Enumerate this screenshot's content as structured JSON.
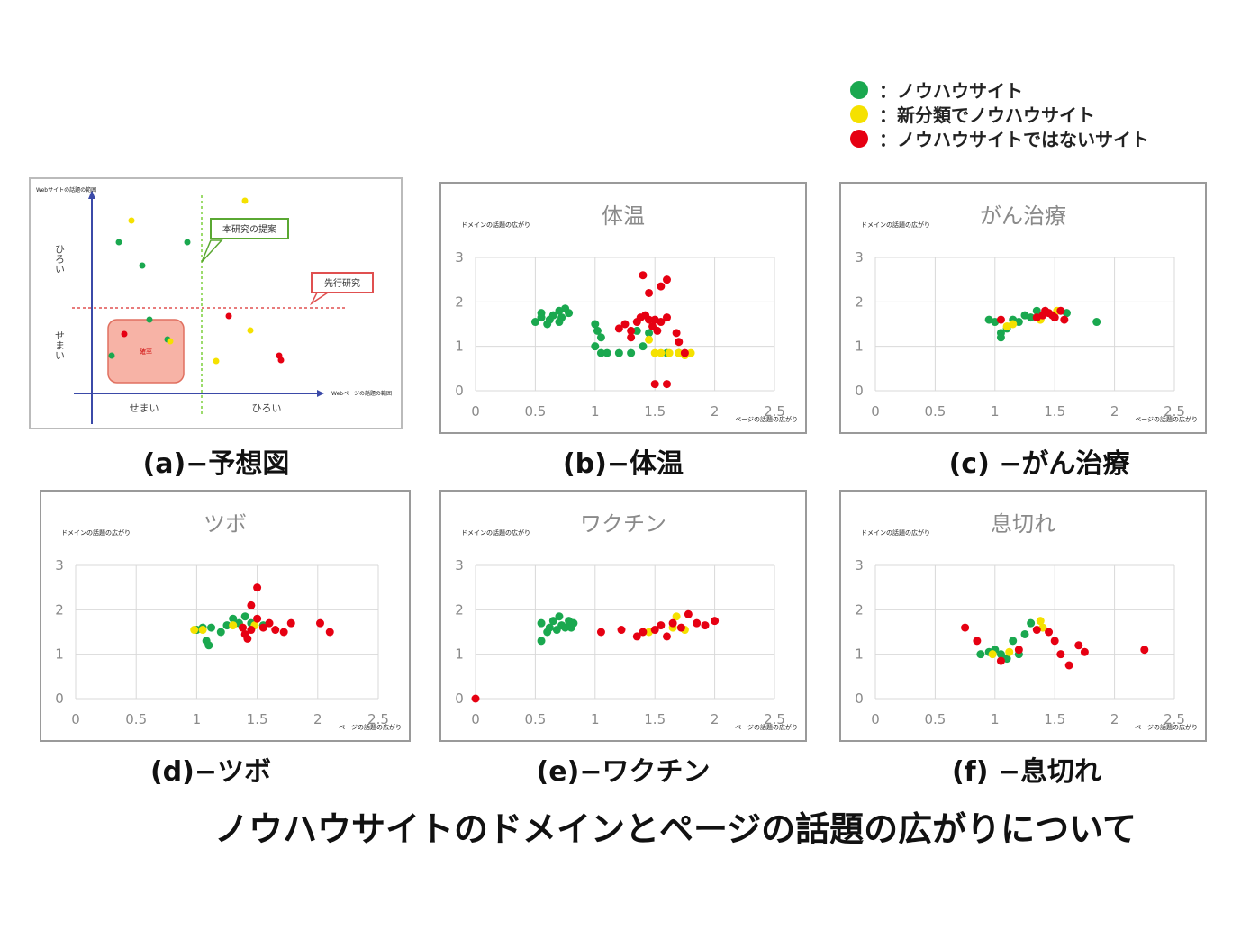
{
  "colors": {
    "green": "#1aa84f",
    "yellow": "#f5e100",
    "red": "#e60012"
  },
  "legend": [
    {
      "color": "#1aa84f",
      "label": "：ノウハウサイト"
    },
    {
      "color": "#f5e100",
      "label": "：新分類でノウハウサイト"
    },
    {
      "color": "#e60012",
      "label": "：ノウハウサイトではないサイト"
    }
  ],
  "main_title": "ノウハウサイトのドメインとページの話題の広がりについて",
  "diagram": {
    "caption": "(a)−予想図",
    "y_axis_label": "Webサイトの話題の範囲",
    "x_axis_label": "Webページの話題の範囲",
    "y_top_label": "ひろい",
    "y_bottom_label": "せまい",
    "x_left_label": "せまい",
    "x_right_label": "ひろい",
    "callout_green": "本研究の提案",
    "callout_red": "先行研究",
    "box_label": "確率"
  },
  "chart_data": [
    {
      "type": "scatter",
      "title": "体温",
      "caption": "(b)−体温",
      "xlabel": "ページの話題の広がり",
      "ylabel": "ドメインの話題の広がり",
      "xlim": [
        0,
        2.5
      ],
      "ylim": [
        0,
        3
      ],
      "xticks": [
        "0",
        "0.5",
        "1",
        "1.5",
        "2",
        "2.5"
      ],
      "yticks": [
        "0",
        "1",
        "2",
        "3"
      ],
      "grid": true,
      "series": [
        {
          "color": "green",
          "points": [
            [
              0.5,
              1.55
            ],
            [
              0.55,
              1.65
            ],
            [
              0.55,
              1.75
            ],
            [
              0.6,
              1.5
            ],
            [
              0.62,
              1.6
            ],
            [
              0.65,
              1.7
            ],
            [
              0.7,
              1.8
            ],
            [
              0.72,
              1.65
            ],
            [
              0.75,
              1.85
            ],
            [
              0.78,
              1.75
            ],
            [
              0.7,
              1.55
            ],
            [
              1.0,
              1.5
            ],
            [
              1.02,
              1.35
            ],
            [
              1.05,
              1.2
            ],
            [
              1.0,
              1.0
            ],
            [
              1.05,
              0.85
            ],
            [
              1.1,
              0.85
            ],
            [
              1.2,
              0.85
            ],
            [
              1.3,
              0.85
            ],
            [
              1.35,
              1.35
            ],
            [
              1.4,
              1.0
            ],
            [
              1.45,
              1.3
            ],
            [
              1.6,
              0.85
            ],
            [
              1.7,
              0.85
            ]
          ]
        },
        {
          "color": "yellow",
          "points": [
            [
              1.45,
              1.15
            ],
            [
              1.5,
              0.85
            ],
            [
              1.55,
              0.85
            ],
            [
              1.62,
              0.85
            ],
            [
              1.7,
              0.85
            ],
            [
              1.75,
              0.8
            ],
            [
              1.8,
              0.85
            ]
          ]
        },
        {
          "color": "red",
          "points": [
            [
              1.4,
              2.6
            ],
            [
              1.55,
              2.35
            ],
            [
              1.6,
              2.5
            ],
            [
              1.45,
              2.2
            ],
            [
              1.2,
              1.4
            ],
            [
              1.25,
              1.5
            ],
            [
              1.3,
              1.35
            ],
            [
              1.3,
              1.2
            ],
            [
              1.35,
              1.55
            ],
            [
              1.38,
              1.65
            ],
            [
              1.42,
              1.7
            ],
            [
              1.45,
              1.6
            ],
            [
              1.5,
              1.6
            ],
            [
              1.55,
              1.55
            ],
            [
              1.6,
              1.65
            ],
            [
              1.48,
              1.45
            ],
            [
              1.52,
              1.35
            ],
            [
              1.68,
              1.3
            ],
            [
              1.7,
              1.1
            ],
            [
              1.75,
              0.85
            ],
            [
              1.5,
              0.15
            ],
            [
              1.6,
              0.15
            ]
          ]
        }
      ]
    },
    {
      "type": "scatter",
      "title": "がん治療",
      "caption": "(c) −がん治療",
      "xlabel": "ページの話題の広がり",
      "ylabel": "ドメインの話題の広がり",
      "xlim": [
        0,
        2.5
      ],
      "ylim": [
        0,
        3
      ],
      "xticks": [
        "0",
        "0.5",
        "1",
        "1.5",
        "2",
        "2.5"
      ],
      "yticks": [
        "0",
        "1",
        "2",
        "3"
      ],
      "grid": true,
      "series": [
        {
          "color": "green",
          "points": [
            [
              0.95,
              1.6
            ],
            [
              1.0,
              1.55
            ],
            [
              1.05,
              1.3
            ],
            [
              1.05,
              1.2
            ],
            [
              1.1,
              1.4
            ],
            [
              1.15,
              1.6
            ],
            [
              1.2,
              1.55
            ],
            [
              1.25,
              1.7
            ],
            [
              1.3,
              1.65
            ],
            [
              1.35,
              1.8
            ],
            [
              1.6,
              1.75
            ],
            [
              1.85,
              1.55
            ]
          ]
        },
        {
          "color": "yellow",
          "points": [
            [
              1.1,
              1.45
            ],
            [
              1.15,
              1.5
            ],
            [
              1.38,
              1.6
            ],
            [
              1.52,
              1.8
            ]
          ]
        },
        {
          "color": "red",
          "points": [
            [
              1.05,
              1.6
            ],
            [
              1.35,
              1.65
            ],
            [
              1.4,
              1.7
            ],
            [
              1.42,
              1.8
            ],
            [
              1.45,
              1.75
            ],
            [
              1.5,
              1.65
            ],
            [
              1.55,
              1.8
            ],
            [
              1.58,
              1.6
            ],
            [
              1.48,
              1.7
            ]
          ]
        }
      ]
    },
    {
      "type": "scatter",
      "title": "ツボ",
      "caption": "(d)−ツボ",
      "xlabel": "ページの話題の広がり",
      "ylabel": "ドメインの話題の広がり",
      "xlim": [
        0,
        2.5
      ],
      "ylim": [
        0,
        3
      ],
      "xticks": [
        "0",
        "0.5",
        "1",
        "1.5",
        "2",
        "2.5"
      ],
      "yticks": [
        "0",
        "1",
        "2",
        "3"
      ],
      "grid": true,
      "series": [
        {
          "color": "green",
          "points": [
            [
              1.0,
              1.55
            ],
            [
              1.05,
              1.6
            ],
            [
              1.08,
              1.3
            ],
            [
              1.1,
              1.2
            ],
            [
              1.12,
              1.6
            ],
            [
              1.2,
              1.5
            ],
            [
              1.25,
              1.65
            ],
            [
              1.3,
              1.8
            ],
            [
              1.35,
              1.7
            ],
            [
              1.4,
              1.85
            ],
            [
              1.45,
              1.7
            ],
            [
              1.55,
              1.65
            ]
          ]
        },
        {
          "color": "yellow",
          "points": [
            [
              0.98,
              1.55
            ],
            [
              1.05,
              1.55
            ],
            [
              1.3,
              1.65
            ],
            [
              1.38,
              1.6
            ],
            [
              1.48,
              1.65
            ]
          ]
        },
        {
          "color": "red",
          "points": [
            [
              1.5,
              2.5
            ],
            [
              1.45,
              2.1
            ],
            [
              1.38,
              1.6
            ],
            [
              1.4,
              1.45
            ],
            [
              1.42,
              1.35
            ],
            [
              1.45,
              1.55
            ],
            [
              1.5,
              1.8
            ],
            [
              1.55,
              1.6
            ],
            [
              1.6,
              1.7
            ],
            [
              1.65,
              1.55
            ],
            [
              1.72,
              1.5
            ],
            [
              1.78,
              1.7
            ],
            [
              2.02,
              1.7
            ],
            [
              2.1,
              1.5
            ]
          ]
        }
      ]
    },
    {
      "type": "scatter",
      "title": "ワクチン",
      "caption": "(e)−ワクチン",
      "xlabel": "ページの話題の広がり",
      "ylabel": "ドメインの話題の広がり",
      "xlim": [
        0,
        2.5
      ],
      "ylim": [
        0,
        3
      ],
      "xticks": [
        "0",
        "0.5",
        "1",
        "1.5",
        "2",
        "2.5"
      ],
      "yticks": [
        "0",
        "1",
        "2",
        "3"
      ],
      "grid": true,
      "series": [
        {
          "color": "green",
          "points": [
            [
              0.55,
              1.7
            ],
            [
              0.55,
              1.3
            ],
            [
              0.6,
              1.5
            ],
            [
              0.62,
              1.6
            ],
            [
              0.65,
              1.75
            ],
            [
              0.68,
              1.55
            ],
            [
              0.7,
              1.85
            ],
            [
              0.72,
              1.65
            ],
            [
              0.75,
              1.6
            ],
            [
              0.78,
              1.75
            ],
            [
              0.8,
              1.6
            ],
            [
              0.82,
              1.7
            ]
          ]
        },
        {
          "color": "yellow",
          "points": [
            [
              1.45,
              1.5
            ],
            [
              1.65,
              1.6
            ],
            [
              1.68,
              1.85
            ],
            [
              1.75,
              1.55
            ]
          ]
        },
        {
          "color": "red",
          "points": [
            [
              0.0,
              0.0
            ],
            [
              1.05,
              1.5
            ],
            [
              1.22,
              1.55
            ],
            [
              1.35,
              1.4
            ],
            [
              1.4,
              1.5
            ],
            [
              1.5,
              1.55
            ],
            [
              1.55,
              1.65
            ],
            [
              1.6,
              1.4
            ],
            [
              1.65,
              1.7
            ],
            [
              1.72,
              1.6
            ],
            [
              1.78,
              1.9
            ],
            [
              1.85,
              1.7
            ],
            [
              1.92,
              1.65
            ],
            [
              2.0,
              1.75
            ]
          ]
        }
      ]
    },
    {
      "type": "scatter",
      "title": "息切れ",
      "caption": "(f) −息切れ",
      "xlabel": "ページの話題の広がり",
      "ylabel": "ドメインの話題の広がり",
      "xlim": [
        0,
        2.5
      ],
      "ylim": [
        0,
        3
      ],
      "xticks": [
        "0",
        "0.5",
        "1",
        "1.5",
        "2",
        "2.5"
      ],
      "yticks": [
        "0",
        "1",
        "2",
        "3"
      ],
      "grid": true,
      "series": [
        {
          "color": "green",
          "points": [
            [
              0.88,
              1.0
            ],
            [
              0.95,
              1.05
            ],
            [
              1.0,
              1.1
            ],
            [
              1.05,
              1.0
            ],
            [
              1.1,
              0.9
            ],
            [
              1.15,
              1.3
            ],
            [
              1.2,
              1.0
            ],
            [
              1.25,
              1.45
            ],
            [
              1.3,
              1.7
            ]
          ]
        },
        {
          "color": "yellow",
          "points": [
            [
              0.98,
              1.0
            ],
            [
              1.12,
              1.05
            ],
            [
              1.38,
              1.75
            ],
            [
              1.4,
              1.6
            ]
          ]
        },
        {
          "color": "red",
          "points": [
            [
              0.75,
              1.6
            ],
            [
              0.85,
              1.3
            ],
            [
              1.05,
              0.85
            ],
            [
              1.2,
              1.1
            ],
            [
              1.35,
              1.55
            ],
            [
              1.45,
              1.5
            ],
            [
              1.5,
              1.3
            ],
            [
              1.55,
              1.0
            ],
            [
              1.62,
              0.75
            ],
            [
              1.7,
              1.2
            ],
            [
              1.75,
              1.05
            ],
            [
              2.25,
              1.1
            ]
          ]
        }
      ]
    }
  ]
}
